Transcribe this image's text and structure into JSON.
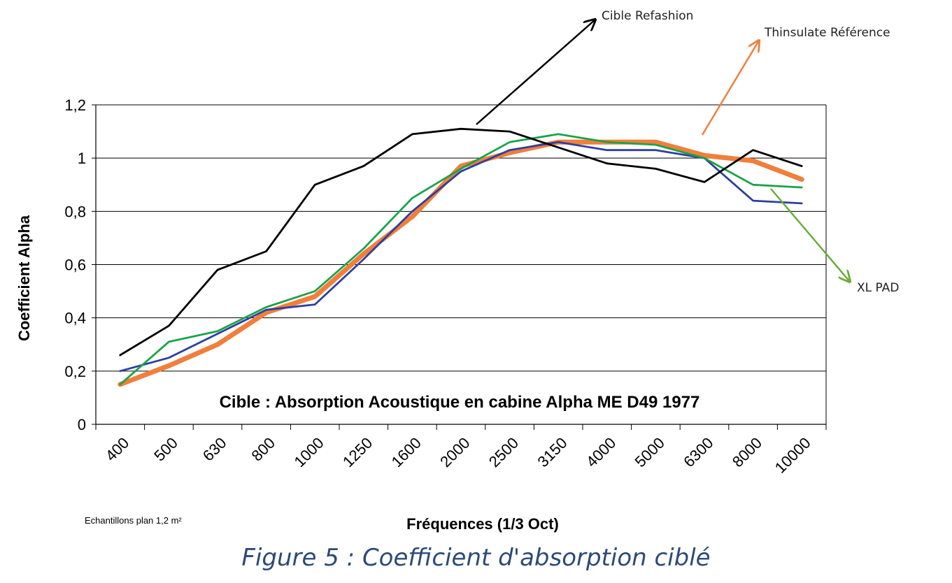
{
  "chart_data": {
    "type": "line",
    "title": "Cible : Absorption Acoustique en cabine Alpha ME D49 1977",
    "xlabel": "Fréquences  (1/3 Oct)",
    "ylabel": "Coefficient  Alpha",
    "categories": [
      "400",
      "500",
      "630",
      "800",
      "1000",
      "1250",
      "1600",
      "2000",
      "2500",
      "3150",
      "4000",
      "5000",
      "6300",
      "8000",
      "10000"
    ],
    "ylim": [
      0,
      1.2
    ],
    "yticks": [
      "0",
      "0,2",
      "0,4",
      "0,6",
      "0,8",
      "1",
      "1,2"
    ],
    "grid": "horizontal",
    "series": [
      {
        "name": "Cible Refashion",
        "color": "#000000",
        "values": [
          0.26,
          0.37,
          0.58,
          0.65,
          0.9,
          0.97,
          1.09,
          1.11,
          1.1,
          1.04,
          0.98,
          0.96,
          0.91,
          1.03,
          0.97
        ]
      },
      {
        "name": "Thinsulate Référence",
        "color": "#f07f3c",
        "values": [
          0.15,
          0.22,
          0.3,
          0.42,
          0.48,
          0.64,
          0.78,
          0.97,
          1.02,
          1.06,
          1.06,
          1.06,
          1.01,
          0.99,
          0.92
        ]
      },
      {
        "name": "XL PAD",
        "color": "#1aa34a",
        "values": [
          0.15,
          0.31,
          0.35,
          0.44,
          0.5,
          0.66,
          0.85,
          0.96,
          1.06,
          1.09,
          1.06,
          1.05,
          1.0,
          0.9,
          0.89
        ]
      },
      {
        "name": "",
        "color": "#2e3f9e",
        "values": [
          0.2,
          0.25,
          0.34,
          0.43,
          0.45,
          0.62,
          0.8,
          0.95,
          1.03,
          1.06,
          1.03,
          1.03,
          1.0,
          0.84,
          0.83
        ]
      }
    ],
    "annotations": [
      "Cible Refashion",
      "Thinsulate Référence",
      "XL PAD"
    ],
    "note": "Echantillons plan 1,2 m²"
  },
  "caption": "Figure 5 : Coefficient d'absorption ciblé"
}
